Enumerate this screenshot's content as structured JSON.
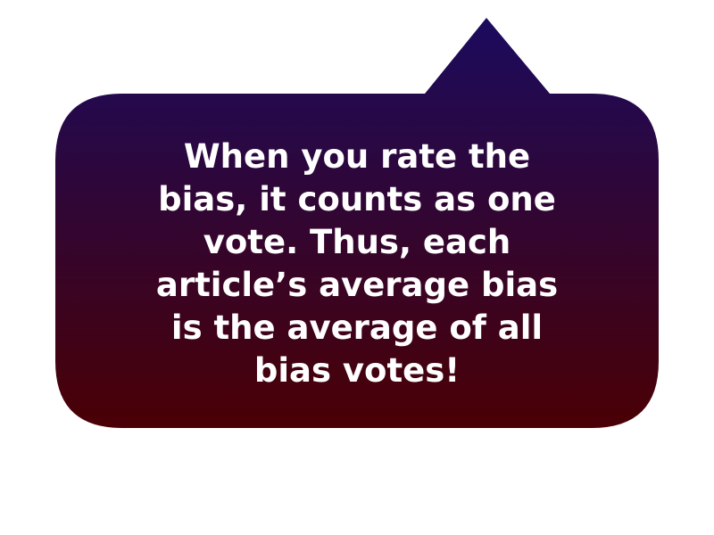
{
  "bubble": {
    "lines": [
      "When you rate the",
      "bias, it counts as one",
      "vote. Thus, each",
      "article’s average bias",
      "is the average of all",
      "bias votes!"
    ],
    "colors": {
      "gradient_top": "#1b0b5e",
      "gradient_bottom": "#4a0004",
      "text": "#ffffff",
      "background": "#ffffff"
    }
  }
}
